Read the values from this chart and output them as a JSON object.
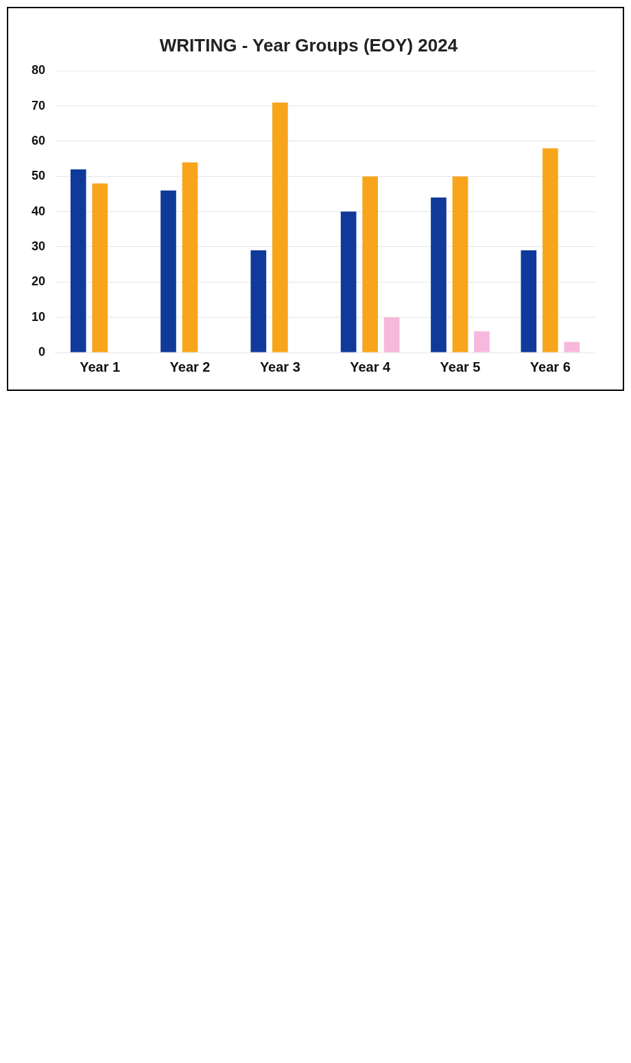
{
  "chart_data": {
    "type": "bar",
    "title": "WRITING - Year Groups (EOY) 2024",
    "categories": [
      "Year 1",
      "Year 2",
      "Year 3",
      "Year 4",
      "Year 5",
      "Year 6"
    ],
    "series": [
      {
        "color": "#0f3a9a",
        "values": [
          52,
          46,
          29,
          40,
          44,
          29
        ]
      },
      {
        "color": "#f8a51c",
        "values": [
          48,
          54,
          71,
          50,
          50,
          58
        ]
      },
      {
        "color": "#f7b8dc",
        "values": [
          null,
          null,
          null,
          10,
          6,
          3
        ]
      }
    ],
    "ylim": [
      0,
      80
    ],
    "yticks": [
      0,
      10,
      20,
      30,
      40,
      50,
      60,
      70,
      80
    ],
    "grid": "y"
  }
}
